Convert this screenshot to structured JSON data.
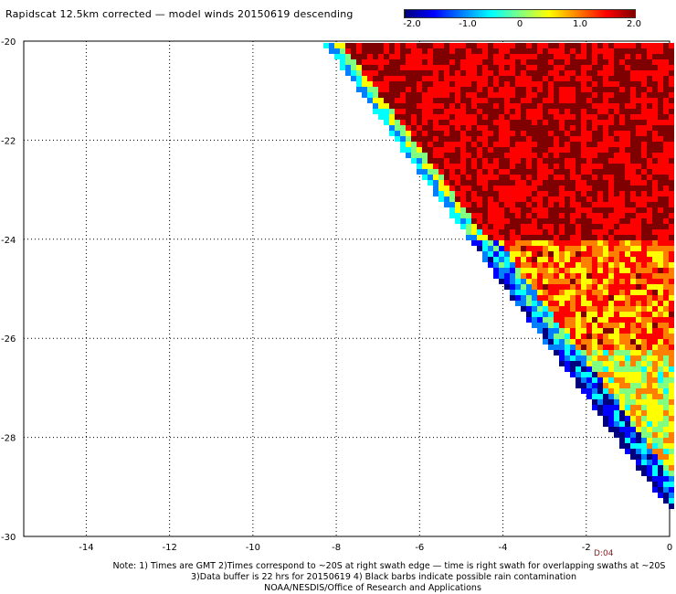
{
  "title": "Rapidscat 12.5km corrected — model winds 20150619 descending",
  "colorbar": {
    "labels": [
      "-2.0",
      "-1.0",
      "0",
      "1.0",
      "2.0"
    ],
    "colors": [
      "#00007f",
      "#0000ff",
      "#0080ff",
      "#00ffff",
      "#80ff80",
      "#ffff00",
      "#ff8000",
      "#ff0000",
      "#7f0000"
    ]
  },
  "x_tick_labels": [
    "-14",
    "-12",
    "-10",
    "-8",
    "-6",
    "-4",
    "-2",
    "0"
  ],
  "y_tick_labels": [
    "-20",
    "-22",
    "-24",
    "-26",
    "-28",
    "-30"
  ],
  "time_code": "D:04",
  "footer": {
    "line1": "Note: 1) Times are GMT 2)Times correspond to ~20S at right swath edge — time is right swath for overlapping swaths at ~20S",
    "line2": "3)Data buffer is 22 hrs for 20150619 4) Black barbs indicate possible rain contamination",
    "line3": "NOAA/NESDIS/Office of Research and Applications"
  }
}
